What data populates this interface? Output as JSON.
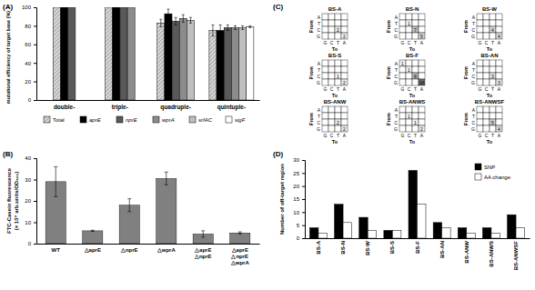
{
  "chart_data": [
    {
      "type": "bar",
      "panel_label": "(A)",
      "y_label": "mutational efficiency of target base (%)",
      "categories": [
        "double-",
        "triple-",
        "quadruple-",
        "quintuple-"
      ],
      "series": [
        {
          "name": "Total",
          "color": "#d9d9d9",
          "values": [
            100,
            100,
            83,
            75
          ],
          "errors": [
            null,
            null,
            4,
            6
          ]
        },
        {
          "name": "aprE",
          "color": "#000000",
          "values": [
            100,
            100,
            93,
            75
          ],
          "errors": [
            null,
            null,
            5,
            6
          ]
        },
        {
          "name": "nprE",
          "color": "#595959",
          "values": [
            100,
            100,
            85,
            78
          ],
          "errors": [
            null,
            null,
            4,
            3
          ]
        },
        {
          "name": "wprA",
          "color": "#8c8c8c",
          "values": [
            null,
            100,
            88,
            78
          ],
          "errors": [
            null,
            null,
            4,
            2
          ]
        },
        {
          "name": "srfAC",
          "color": "#bfbfbf",
          "values": [
            null,
            null,
            86,
            78
          ],
          "errors": [
            null,
            null,
            3,
            2
          ]
        },
        {
          "name": "sigF",
          "color": "#ffffff",
          "values": [
            null,
            null,
            null,
            79
          ],
          "errors": [
            null,
            null,
            null,
            1
          ]
        }
      ],
      "ylim": [
        0,
        100
      ],
      "yticks": [
        0,
        20,
        40,
        60,
        80,
        100
      ],
      "grid": false,
      "legend": "bottom"
    },
    {
      "type": "bar",
      "panel_label": "(B)",
      "y_label": [
        "FTC-Casein fluorescence",
        "(× 10⁴ arb.units/OD₆₀₀)"
      ],
      "categories": [
        "WT",
        "△aprE",
        "△nprE",
        "△wprA",
        "△aprE △nprE",
        "△aprE △nprE △wprA"
      ],
      "values": [
        29,
        6,
        18,
        30.5,
        4.5,
        5
      ],
      "errors": [
        7,
        0.3,
        3,
        3,
        1.5,
        0.5
      ],
      "color": "#808080",
      "ylim": [
        0,
        40
      ],
      "yticks": [
        0,
        10,
        20,
        30,
        40
      ],
      "grid": false
    },
    {
      "type": "heatmap",
      "panel_label": "(C)",
      "x_label": "To",
      "y_label": "From",
      "x_categories": [
        "G",
        "C",
        "T",
        "A"
      ],
      "y_categories": [
        "A",
        "T",
        "C",
        "G"
      ],
      "data_labels": true,
      "panels": [
        {
          "title": "BS-A",
          "cells": [
            [
              0,
              0,
              0,
              0
            ],
            [
              0,
              0,
              0,
              0
            ],
            [
              0,
              0,
              2,
              0
            ],
            [
              0,
              0,
              0,
              2
            ]
          ]
        },
        {
          "title": "BS-N",
          "cells": [
            [
              0,
              0,
              0,
              0
            ],
            [
              0,
              1,
              0,
              0
            ],
            [
              0,
              0,
              7,
              0
            ],
            [
              0,
              0,
              0,
              5
            ]
          ]
        },
        {
          "title": "BS-W",
          "cells": [
            [
              0,
              0,
              0,
              0
            ],
            [
              0,
              0,
              0,
              0
            ],
            [
              0,
              0,
              4,
              0
            ],
            [
              0,
              0,
              0,
              4
            ]
          ]
        },
        {
          "title": "BS-S",
          "cells": [
            [
              0,
              0,
              0,
              0
            ],
            [
              0,
              0,
              0,
              0
            ],
            [
              0,
              0,
              1,
              0
            ],
            [
              0,
              0,
              0,
              2
            ]
          ]
        },
        {
          "title": "BS-F",
          "cells": [
            [
              1,
              0,
              0,
              0
            ],
            [
              0,
              1,
              0,
              0
            ],
            [
              0,
              0,
              8,
              0
            ],
            [
              0,
              0,
              0,
              16
            ]
          ]
        },
        {
          "title": "BS-AN",
          "cells": [
            [
              0,
              0,
              0,
              0
            ],
            [
              0,
              0,
              0,
              0
            ],
            [
              0,
              0,
              3,
              0
            ],
            [
              0,
              0,
              0,
              3
            ]
          ]
        },
        {
          "title": "BS-ANW",
          "cells": [
            [
              0,
              0,
              0,
              0
            ],
            [
              0,
              0,
              0,
              0
            ],
            [
              0,
              0,
              2,
              0
            ],
            [
              0,
              0,
              0,
              2
            ]
          ]
        },
        {
          "title": "BS-ANWS",
          "cells": [
            [
              0,
              0,
              0,
              0
            ],
            [
              0,
              1,
              0,
              0
            ],
            [
              0,
              0,
              1,
              0
            ],
            [
              0,
              0,
              0,
              2
            ]
          ]
        },
        {
          "title": "BS-ANWSF",
          "cells": [
            [
              0,
              0,
              0,
              0
            ],
            [
              0,
              0,
              0,
              0
            ],
            [
              0,
              0,
              5,
              0
            ],
            [
              0,
              0,
              0,
              4
            ]
          ]
        }
      ]
    },
    {
      "type": "bar",
      "panel_label": "(D)",
      "y_label": "Number of off-target region",
      "categories": [
        "BS-A",
        "BS-N",
        "BS-W",
        "BS-S",
        "BS-F",
        "BS-AN",
        "BS-ANW",
        "BS-ANWS",
        "BS-ANWSF"
      ],
      "series": [
        {
          "name": "SNP",
          "color": "#000000",
          "values": [
            4,
            13,
            8,
            3,
            26,
            6,
            4,
            4,
            9
          ]
        },
        {
          "name": "AA change",
          "color": "#ffffff",
          "values": [
            2,
            6,
            3,
            3,
            13,
            4,
            2,
            2,
            4
          ]
        }
      ],
      "ylim": [
        0,
        30
      ],
      "yticks": [
        0,
        5,
        10,
        15,
        20,
        25,
        30
      ],
      "grid": false,
      "legend": "upper right"
    }
  ]
}
